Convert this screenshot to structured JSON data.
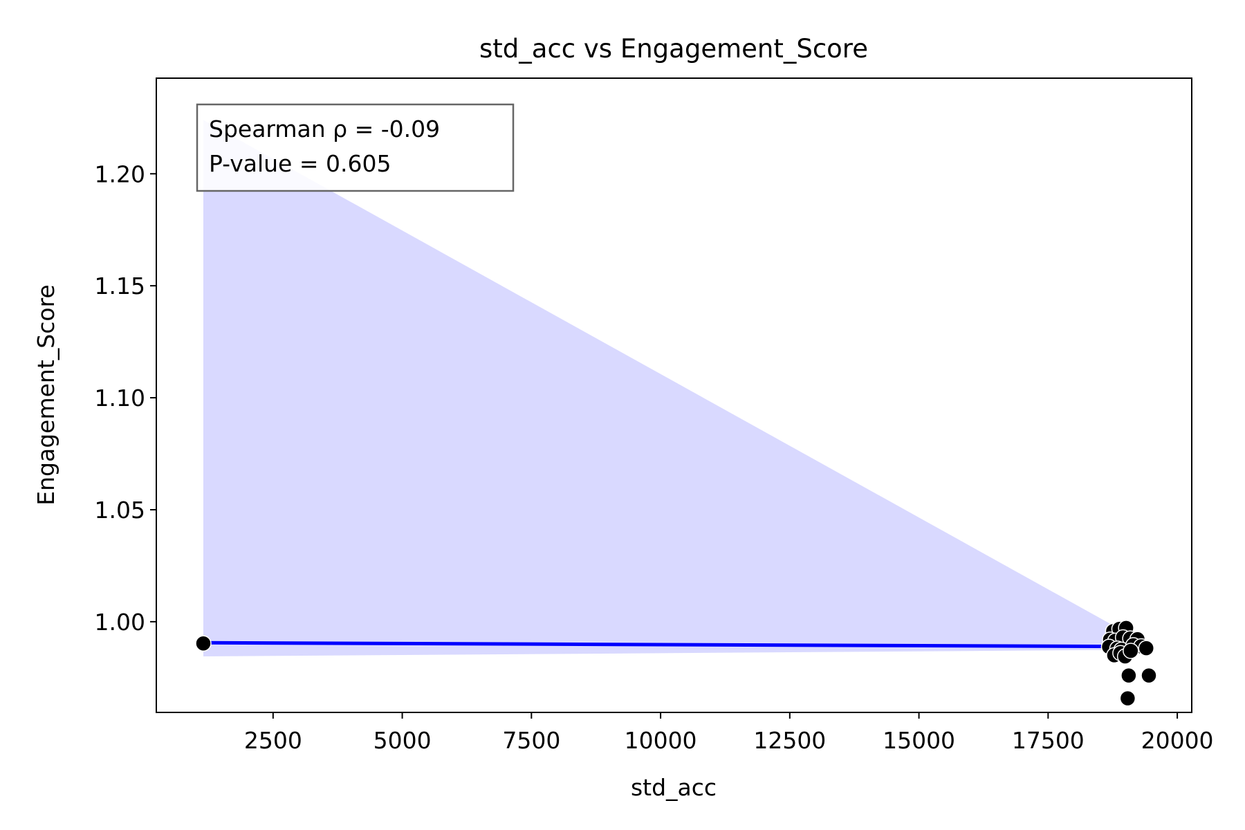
{
  "chart_data": {
    "type": "scatter",
    "title": "std_acc vs Engagement_Score",
    "xlabel": "std_acc",
    "ylabel": "Engagement_Score",
    "xlim": [
      240,
      20280
    ],
    "ylim": [
      0.9595,
      1.2427
    ],
    "xticks": [
      2500,
      5000,
      7500,
      10000,
      12500,
      15000,
      17500,
      20000
    ],
    "xtick_labels": [
      "2500",
      "5000",
      "7500",
      "10000",
      "12500",
      "15000",
      "17500",
      "20000"
    ],
    "yticks": [
      1.0,
      1.05,
      1.1,
      1.15,
      1.2
    ],
    "ytick_labels": [
      "1.00",
      "1.05",
      "1.10",
      "1.15",
      "1.20"
    ],
    "grid": false,
    "annotation": [
      "Spearman ρ = -0.09",
      "P-value = 0.605"
    ],
    "annotation_placement": "top-left",
    "points": [
      {
        "x": 1150,
        "y": 0.9903
      },
      {
        "x": 18760,
        "y": 0.9958
      },
      {
        "x": 18880,
        "y": 0.9968
      },
      {
        "x": 19010,
        "y": 0.9972
      },
      {
        "x": 18700,
        "y": 0.992
      },
      {
        "x": 18800,
        "y": 0.9915
      },
      {
        "x": 18950,
        "y": 0.993
      },
      {
        "x": 19090,
        "y": 0.9925
      },
      {
        "x": 19230,
        "y": 0.9922
      },
      {
        "x": 18680,
        "y": 0.9888
      },
      {
        "x": 18840,
        "y": 0.988
      },
      {
        "x": 18920,
        "y": 0.9875
      },
      {
        "x": 19150,
        "y": 0.9895
      },
      {
        "x": 19300,
        "y": 0.989
      },
      {
        "x": 19400,
        "y": 0.9882
      },
      {
        "x": 18780,
        "y": 0.985
      },
      {
        "x": 18900,
        "y": 0.986
      },
      {
        "x": 18990,
        "y": 0.9845
      },
      {
        "x": 19100,
        "y": 0.987
      },
      {
        "x": 19060,
        "y": 0.976
      },
      {
        "x": 19450,
        "y": 0.976
      },
      {
        "x": 19040,
        "y": 0.9658
      }
    ],
    "regression": {
      "color": "#0000ff",
      "x": [
        1150,
        19450
      ],
      "y": [
        0.9906,
        0.9889
      ]
    },
    "confidence_band": {
      "color": "#d9d9ff",
      "x": [
        1150,
        19450
      ],
      "lower": [
        0.9845,
        0.9875
      ],
      "upper": [
        1.224,
        0.9895
      ]
    },
    "point_color": "#000000"
  }
}
